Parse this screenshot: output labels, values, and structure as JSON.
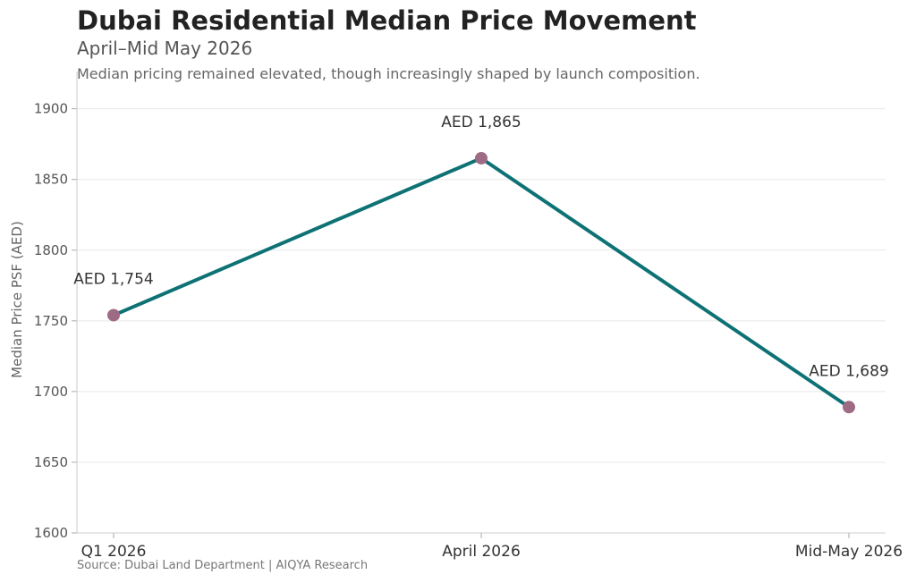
{
  "chart_data": {
    "type": "line",
    "title": "Dubai Residential Median Price Movement",
    "subtitle": "April–Mid May 2026",
    "caption": "Median pricing remained elevated, though increasingly shaped by launch composition.",
    "source": "Source: Dubai Land Department | AIQYA Research",
    "ylabel": "Median Price PSF (AED)",
    "xlabel": "",
    "categories": [
      "Q1 2026",
      "April 2026",
      "Mid-May 2026"
    ],
    "series": [
      {
        "values": [
          1754,
          1865,
          1689
        ],
        "labels": [
          "AED 1,754",
          "AED 1,865",
          "AED 1,689"
        ],
        "line_color": "#0e7275",
        "marker_color": "#9e6b84"
      }
    ],
    "ylim": [
      1600,
      1920
    ],
    "yticks": [
      1600,
      1650,
      1700,
      1750,
      1800,
      1850,
      1900
    ],
    "grid": true
  }
}
